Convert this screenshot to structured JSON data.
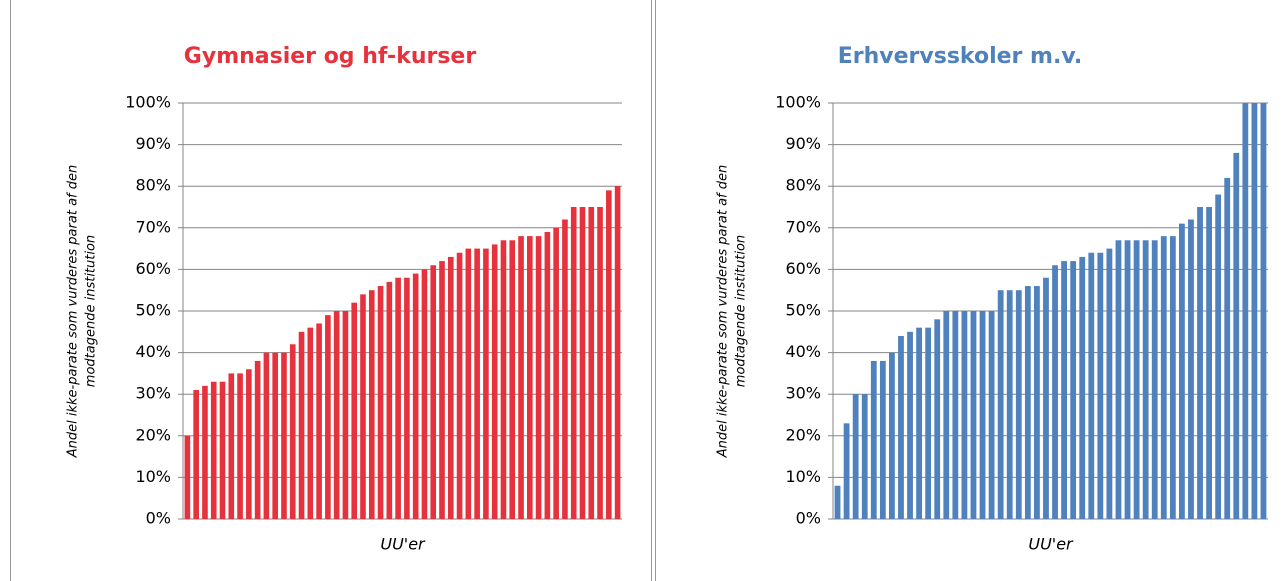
{
  "chart_data": [
    {
      "type": "bar",
      "title": "Gymnasier og hf-kurser",
      "title_color": "#e6323c",
      "color": "#e6323c",
      "ylabel": [
        "Andel ikke-parate som vurderes parat af den",
        "modtagende institution"
      ],
      "xlabel": "UU'er",
      "categories": [
        null,
        null,
        null,
        null,
        null,
        null,
        null,
        null,
        null,
        null,
        null,
        null,
        null,
        null,
        null,
        null,
        null,
        null,
        null,
        null,
        null,
        null,
        null,
        null,
        null,
        null,
        null,
        null,
        null,
        null,
        null,
        null,
        null,
        null,
        null,
        null,
        null,
        null,
        null,
        null,
        null,
        null,
        null,
        null,
        null,
        null,
        null,
        null,
        null,
        null
      ],
      "values": [
        20,
        31,
        32,
        33,
        33,
        35,
        35,
        36,
        38,
        40,
        40,
        40,
        42,
        45,
        46,
        47,
        49,
        50,
        50,
        52,
        54,
        55,
        56,
        57,
        58,
        58,
        59,
        60,
        61,
        62,
        63,
        64,
        65,
        65,
        65,
        66,
        67,
        67,
        68,
        68,
        68,
        69,
        70,
        72,
        75,
        75,
        75,
        75,
        79,
        80
      ],
      "ylim": [
        0,
        100
      ],
      "yticks": [
        {
          "value": 0,
          "label": "0%"
        },
        {
          "value": 10,
          "label": "10%"
        },
        {
          "value": 20,
          "label": "20%"
        },
        {
          "value": 30,
          "label": "30%"
        },
        {
          "value": 40,
          "label": "40%"
        },
        {
          "value": 50,
          "label": "50%"
        },
        {
          "value": 60,
          "label": "60%"
        },
        {
          "value": 70,
          "label": "70%"
        },
        {
          "value": 80,
          "label": "80%"
        },
        {
          "value": 90,
          "label": "90%"
        },
        {
          "value": 100,
          "label": "100%"
        }
      ],
      "grid": true
    },
    {
      "type": "bar",
      "title": "Erhvervsskoler m.v.",
      "title_color": "#4f81bd",
      "color": "#4f81bd",
      "ylabel": [
        "Andel ikke-parate som vurderes parat af den",
        "modtagende institution"
      ],
      "xlabel": "UU'er",
      "categories": [
        null,
        null,
        null,
        null,
        null,
        null,
        null,
        null,
        null,
        null,
        null,
        null,
        null,
        null,
        null,
        null,
        null,
        null,
        null,
        null,
        null,
        null,
        null,
        null,
        null,
        null,
        null,
        null,
        null,
        null,
        null,
        null,
        null,
        null,
        null,
        null,
        null,
        null,
        null,
        null,
        null,
        null,
        null,
        null,
        null,
        null,
        null,
        null
      ],
      "values": [
        8,
        23,
        30,
        30,
        38,
        38,
        40,
        44,
        45,
        46,
        46,
        48,
        50,
        50,
        50,
        50,
        50,
        50,
        55,
        55,
        55,
        56,
        56,
        58,
        61,
        62,
        62,
        63,
        64,
        64,
        65,
        67,
        67,
        67,
        67,
        67,
        68,
        68,
        71,
        72,
        75,
        75,
        78,
        82,
        88,
        100,
        100,
        100
      ],
      "ylim": [
        0,
        100
      ],
      "yticks": [
        {
          "value": 0,
          "label": "0%"
        },
        {
          "value": 10,
          "label": "10%"
        },
        {
          "value": 20,
          "label": "20%"
        },
        {
          "value": 30,
          "label": "30%"
        },
        {
          "value": 40,
          "label": "40%"
        },
        {
          "value": 50,
          "label": "50%"
        },
        {
          "value": 60,
          "label": "60%"
        },
        {
          "value": 70,
          "label": "70%"
        },
        {
          "value": 80,
          "label": "80%"
        },
        {
          "value": 90,
          "label": "90%"
        },
        {
          "value": 100,
          "label": "100%"
        }
      ],
      "grid": true
    }
  ]
}
